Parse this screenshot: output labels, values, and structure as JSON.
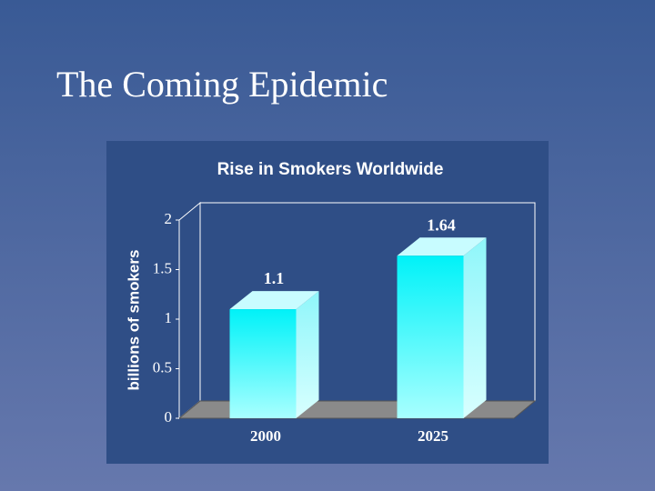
{
  "slide_title": "The Coming Epidemic",
  "chart_data": {
    "type": "bar",
    "title": "Rise in Smokers Worldwide",
    "y_label": "billions of smokers",
    "categories": [
      "2000",
      "2025"
    ],
    "values": [
      1.1,
      1.64
    ],
    "color": "#00ffff",
    "ylim": [
      0,
      2
    ],
    "yticks": [
      0,
      0.5,
      1,
      1.5,
      2
    ]
  }
}
